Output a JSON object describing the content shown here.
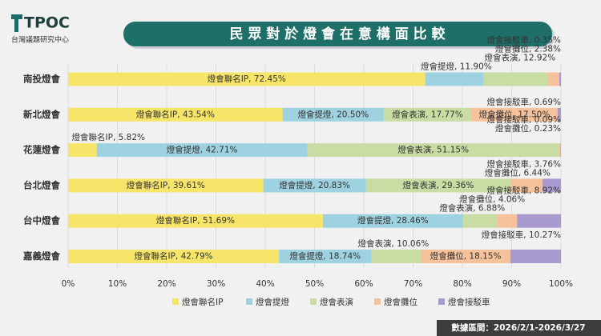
{
  "logo": {
    "name": "TPOC",
    "subtitle": "台灣議題研究中心"
  },
  "footer": "數據區間：2026/2/1-2026/3/27",
  "chart_data": {
    "type": "stacked-bar-horizontal",
    "title": "民 眾 對 於 燈 會 在 意 構 面 比 較",
    "categories": [
      "南投燈會",
      "新北燈會",
      "花蓮燈會",
      "台北燈會",
      "台中燈會",
      "嘉義燈會"
    ],
    "series": [
      {
        "name": "燈會聯名IP",
        "color": "#f7e56a",
        "values": [
          72.45,
          43.54,
          5.82,
          39.61,
          51.69,
          42.79
        ],
        "value_labels": [
          "燈會聯名IP, 72.45%",
          "燈會聯名IP, 43.54%",
          "燈會聯名IP, 5.82%",
          "燈會聯名IP, 39.61%",
          "燈會聯名IP, 51.69%",
          "燈會聯名IP, 42.79%"
        ]
      },
      {
        "name": "燈會提燈",
        "color": "#9fd2e0",
        "values": [
          11.9,
          20.5,
          42.71,
          20.83,
          28.46,
          18.74
        ],
        "value_labels": [
          "燈會提燈, 11.90%",
          "燈會提燈, 20.50%",
          "燈會提燈, 42.71%",
          "燈會提燈, 20.83%",
          "燈會提燈, 28.46%",
          "燈會提燈, 18.74%"
        ]
      },
      {
        "name": "燈會表演",
        "color": "#c8dca3",
        "values": [
          12.92,
          17.77,
          51.15,
          29.36,
          6.88,
          10.06
        ],
        "value_labels": [
          "燈會表演, 12.92%",
          "燈會表演, 17.77%",
          "燈會表演, 51.15%",
          "燈會表演, 29.36%",
          "燈會表演, 6.88%",
          "燈會表演, 10.06%"
        ]
      },
      {
        "name": "燈會攤位",
        "color": "#f6c29c",
        "values": [
          2.38,
          17.5,
          0.23,
          6.44,
          4.06,
          18.15
        ],
        "value_labels": [
          "燈會攤位, 2.38%",
          "燈會攤位, 17.50%",
          "燈會攤位, 0.23%",
          "燈會攤位, 6.44%",
          "燈會攤位, 4.06%",
          "燈會攤位, 18.15%"
        ]
      },
      {
        "name": "燈會接駁車",
        "color": "#a99ad0",
        "values": [
          0.35,
          0.69,
          0.09,
          3.76,
          8.92,
          10.27
        ],
        "value_labels": [
          "燈會接駁車, 0.35%",
          "燈會接駁車, 0.69%",
          "燈會接駁車, 0.09%",
          "燈會接駁車, 3.76%",
          "燈會接駁車, 8.92%",
          "燈會接駁車, 10.27%"
        ]
      }
    ],
    "xlim": [
      0,
      100
    ],
    "xticks": [
      {
        "value": 0,
        "label": "0%"
      },
      {
        "value": 10,
        "label": "10%"
      },
      {
        "value": 20,
        "label": "20%"
      },
      {
        "value": 30,
        "label": "30%"
      },
      {
        "value": 40,
        "label": "40%"
      },
      {
        "value": 50,
        "label": "50%"
      },
      {
        "value": 60,
        "label": "60%"
      },
      {
        "value": 70,
        "label": "70%"
      },
      {
        "value": 80,
        "label": "80%"
      },
      {
        "value": 90,
        "label": "90%"
      },
      {
        "value": 100,
        "label": "100%"
      }
    ],
    "grid": true,
    "legend": "bottom"
  }
}
